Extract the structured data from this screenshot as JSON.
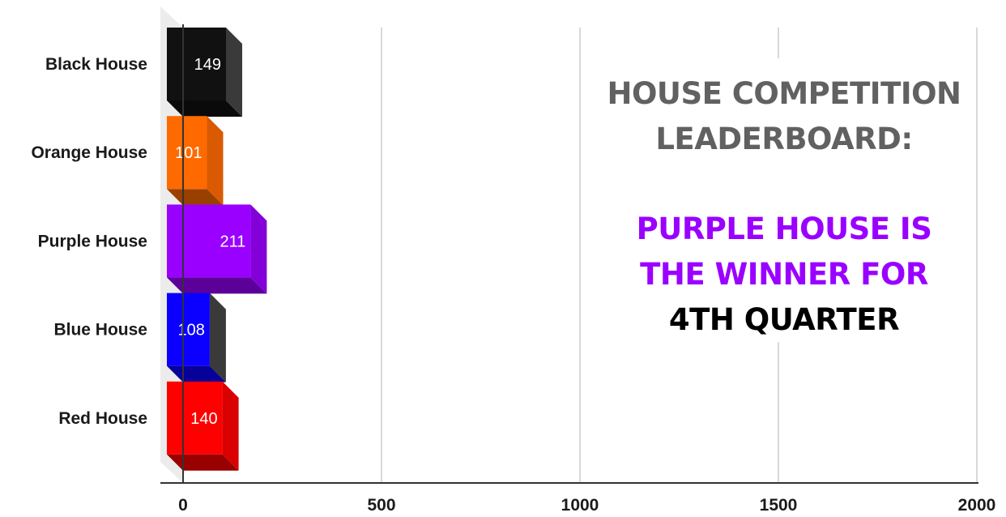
{
  "chart_data": {
    "type": "bar",
    "orientation": "horizontal",
    "categories": [
      "Black House",
      "Orange House",
      "Purple House",
      "Blue House",
      "Red House"
    ],
    "values": [
      149,
      101,
      211,
      108,
      140
    ],
    "data_labels": [
      "149",
      "101",
      "211",
      "108",
      "140"
    ],
    "colors": [
      "#111111",
      "#ff6a00",
      "#9a00ff",
      "#0b00ff",
      "#ff0000"
    ],
    "xlim": [
      0,
      2000
    ],
    "x_ticks": [
      0,
      500,
      1000,
      1500,
      2000
    ],
    "x_tick_labels": [
      "0",
      "500",
      "1000",
      "1500",
      "2000"
    ],
    "grid": true,
    "style": "3d"
  },
  "annotation": {
    "lines": [
      {
        "text": "HOUSE COMPETITION",
        "color": "#616161"
      },
      {
        "text": "LEADERBOARD:",
        "color": "#616161"
      },
      {
        "text": "PURPLE HOUSE IS",
        "color": "#9a00ff"
      },
      {
        "text": "THE WINNER FOR",
        "color": "#9a00ff"
      },
      {
        "text": "4TH QUARTER",
        "color": "#000000"
      }
    ]
  }
}
